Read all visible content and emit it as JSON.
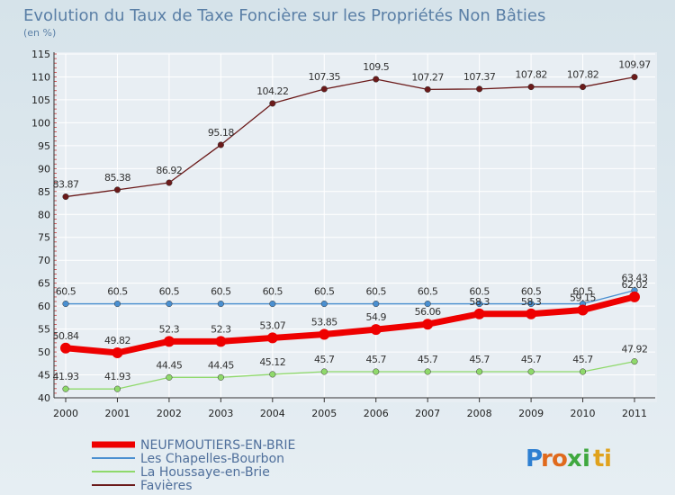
{
  "chart_data": {
    "type": "line",
    "title": "Evolution du Taux de Taxe Foncière sur les Propriétés Non Bâties",
    "subtitle": "(en %)",
    "xlabel": "",
    "ylabel": "",
    "ylim": [
      40,
      115
    ],
    "y_ticks": [
      40,
      45,
      50,
      55,
      60,
      65,
      70,
      75,
      80,
      85,
      90,
      95,
      100,
      105,
      110,
      115
    ],
    "categories": [
      "2000",
      "2001",
      "2002",
      "2003",
      "2004",
      "2005",
      "2006",
      "2007",
      "2008",
      "2009",
      "2010",
      "2011"
    ],
    "grid": true,
    "legend_position": "bottom-left",
    "series": [
      {
        "name": "Favières",
        "color": "#6b1a1a",
        "values": [
          83.87,
          85.38,
          86.92,
          95.18,
          104.22,
          107.35,
          109.5,
          107.27,
          107.37,
          107.82,
          107.82,
          109.97
        ],
        "labels": [
          "83.87",
          "85.38",
          "86.92",
          "95.18",
          "104.22",
          "107.35",
          "109.5",
          "107.27",
          "107.37",
          "107.82",
          "107.82",
          "109.97"
        ]
      },
      {
        "name": "Les Chapelles-Bourbon",
        "color": "#4a8fd0",
        "values": [
          60.5,
          60.5,
          60.5,
          60.5,
          60.5,
          60.5,
          60.5,
          60.5,
          60.5,
          60.5,
          60.5,
          63.43
        ],
        "labels": [
          "60.5",
          "60.5",
          "60.5",
          "60.5",
          "60.5",
          "60.5",
          "60.5",
          "60.5",
          "60.5",
          "60.5",
          "60.5",
          "63.43"
        ]
      },
      {
        "name": "La Houssaye-en-Brie",
        "color": "#8fd96b",
        "values": [
          41.93,
          41.93,
          44.45,
          44.45,
          45.12,
          45.7,
          45.7,
          45.7,
          45.7,
          45.7,
          45.7,
          47.92
        ],
        "labels": [
          "41.93",
          "41.93",
          "44.45",
          "44.45",
          "45.12",
          "45.7",
          "45.7",
          "45.7",
          "45.7",
          "45.7",
          "45.7",
          "47.92"
        ]
      },
      {
        "name": "NEUFMOUTIERS-EN-BRIE",
        "color": "#ee0000",
        "values": [
          50.84,
          49.82,
          52.3,
          52.3,
          53.07,
          53.85,
          54.9,
          56.06,
          58.3,
          58.3,
          59.15,
          62.02
        ],
        "labels": [
          "50.84",
          "49.82",
          "52.3",
          "52.3",
          "53.07",
          "53.85",
          "54.9",
          "56.06",
          "58.3",
          "58.3",
          "59.15",
          "62.02"
        ]
      }
    ],
    "legend": [
      "NEUFMOUTIERS-EN-BRIE",
      "Les Chapelles-Bourbon",
      "La Houssaye-en-Brie",
      "Favières"
    ]
  },
  "brand": {
    "letters": [
      "P",
      "r",
      "o",
      "x",
      "i",
      "t",
      "i"
    ],
    "colors": [
      "#2e7fd1",
      "#e06a1d",
      "#e06a1d",
      "#3fa83f",
      "#3fa83f",
      "#e0a21d",
      "#e0a21d"
    ]
  }
}
